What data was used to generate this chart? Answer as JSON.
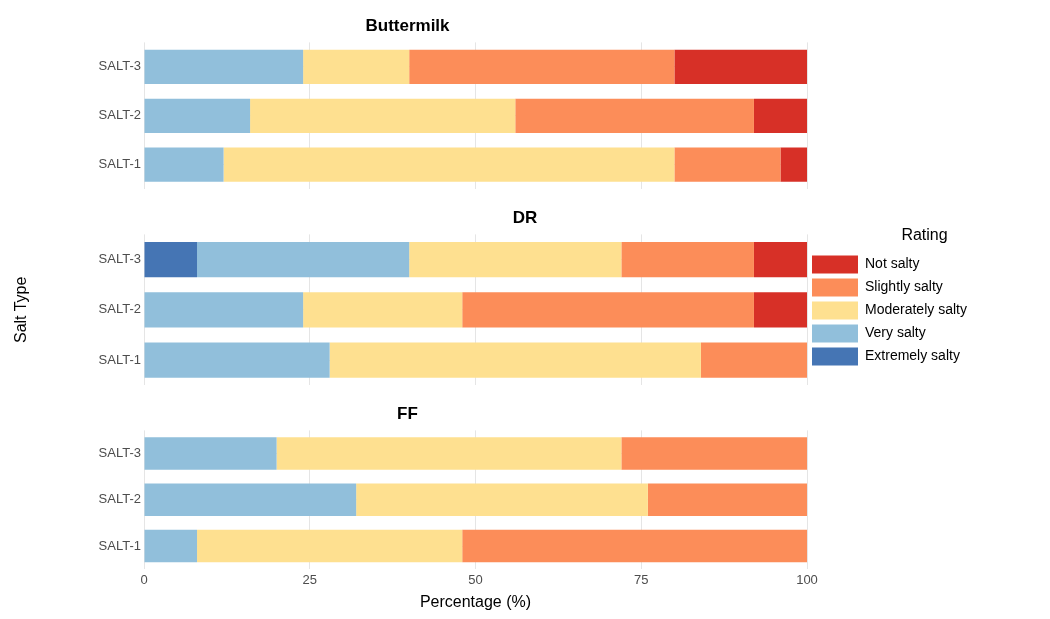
{
  "chart_data": [
    {
      "type": "bar",
      "title": "Buttermilk",
      "orientation": "horizontal",
      "stacked": true,
      "categories": [
        "SALT-3",
        "SALT-2",
        "SALT-1"
      ],
      "series": [
        {
          "color": "#91bfdb",
          "values": [
            24,
            16,
            12
          ]
        },
        {
          "color": "#fee090",
          "values": [
            16,
            40,
            68
          ]
        },
        {
          "color": "#fc8d59",
          "values": [
            40,
            36,
            16
          ]
        },
        {
          "color": "#d73027",
          "values": [
            20,
            8,
            4
          ]
        }
      ],
      "xlim": [
        0,
        100
      ],
      "xticks": [
        0,
        25,
        50,
        75,
        100
      ],
      "grid": true,
      "tick_labels": "y"
    },
    {
      "type": "bar",
      "title": "DR",
      "orientation": "horizontal",
      "stacked": true,
      "ylabel": "Salt Type",
      "legend_title": "Rating",
      "legend": "right",
      "categories": [
        "SALT-3",
        "SALT-2",
        "SALT-1"
      ],
      "series": [
        {
          "name": "Extremely salty",
          "color": "#4575b4",
          "values": [
            8,
            0,
            0
          ]
        },
        {
          "name": "Very salty",
          "color": "#91bfdb",
          "values": [
            32,
            24,
            28
          ]
        },
        {
          "name": "Moderately salty",
          "color": "#fee090",
          "values": [
            32,
            24,
            56
          ]
        },
        {
          "name": "Slightly salty",
          "color": "#fc8d59",
          "values": [
            20,
            44,
            16
          ]
        },
        {
          "name": "Not salty",
          "color": "#d73027",
          "values": [
            8,
            8,
            0
          ]
        }
      ],
      "xlim": [
        0,
        100
      ],
      "xticks": [
        0,
        25,
        50,
        75,
        100
      ],
      "grid": true,
      "tick_labels": "y"
    },
    {
      "type": "bar",
      "title": "FF",
      "orientation": "horizontal",
      "stacked": true,
      "xlabel": "Percentage (%)",
      "categories": [
        "SALT-3",
        "SALT-2",
        "SALT-1"
      ],
      "series": [
        {
          "color": "#91bfdb",
          "values": [
            20,
            32,
            8
          ]
        },
        {
          "color": "#fee090",
          "values": [
            52,
            44,
            40
          ]
        },
        {
          "color": "#fc8d59",
          "values": [
            28,
            24,
            52
          ]
        }
      ],
      "xlim": [
        0,
        100
      ],
      "xticks": [
        0,
        25,
        50,
        75,
        100
      ],
      "grid": true
    }
  ]
}
